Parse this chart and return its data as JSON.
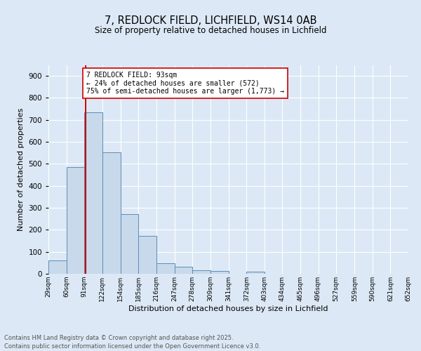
{
  "title1": "7, REDLOCK FIELD, LICHFIELD, WS14 0AB",
  "title2": "Size of property relative to detached houses in Lichfield",
  "xlabel": "Distribution of detached houses by size in Lichfield",
  "ylabel": "Number of detached properties",
  "bins": [
    29,
    60,
    91,
    122,
    154,
    185,
    216,
    247,
    278,
    309,
    341,
    372,
    403,
    434,
    465,
    496,
    527,
    559,
    590,
    621,
    652
  ],
  "counts": [
    62,
    484,
    735,
    553,
    271,
    173,
    47,
    32,
    17,
    13,
    0,
    8,
    0,
    0,
    0,
    0,
    0,
    0,
    0,
    0
  ],
  "bar_color": "#c8d9eb",
  "bar_edge_color": "#5b8db8",
  "vline_x": 93,
  "vline_color": "#cc0000",
  "annotation_text": "7 REDLOCK FIELD: 93sqm\n← 24% of detached houses are smaller (572)\n75% of semi-detached houses are larger (1,773) →",
  "annotation_box_color": "#ffffff",
  "annotation_box_edge": "#cc0000",
  "ylim": [
    0,
    950
  ],
  "yticks": [
    0,
    100,
    200,
    300,
    400,
    500,
    600,
    700,
    800,
    900
  ],
  "tick_labels": [
    "29sqm",
    "60sqm",
    "91sqm",
    "122sqm",
    "154sqm",
    "185sqm",
    "216sqm",
    "247sqm",
    "278sqm",
    "309sqm",
    "341sqm",
    "372sqm",
    "403sqm",
    "434sqm",
    "465sqm",
    "496sqm",
    "527sqm",
    "559sqm",
    "590sqm",
    "621sqm",
    "652sqm"
  ],
  "footer1": "Contains HM Land Registry data © Crown copyright and database right 2025.",
  "footer2": "Contains public sector information licensed under the Open Government Licence v3.0.",
  "bg_color": "#dce8f5",
  "plot_bg_color": "#dce8f5"
}
